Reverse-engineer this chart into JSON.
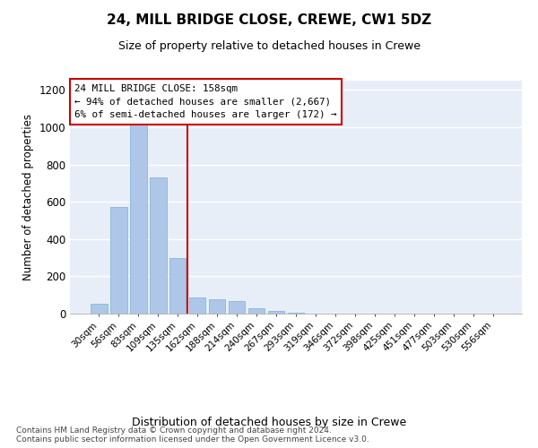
{
  "title1": "24, MILL BRIDGE CLOSE, CREWE, CW1 5DZ",
  "title2": "Size of property relative to detached houses in Crewe",
  "xlabel": "Distribution of detached houses by size in Crewe",
  "ylabel": "Number of detached properties",
  "categories": [
    "30sqm",
    "56sqm",
    "83sqm",
    "109sqm",
    "135sqm",
    "162sqm",
    "188sqm",
    "214sqm",
    "240sqm",
    "267sqm",
    "293sqm",
    "319sqm",
    "346sqm",
    "372sqm",
    "398sqm",
    "425sqm",
    "451sqm",
    "477sqm",
    "503sqm",
    "530sqm",
    "556sqm"
  ],
  "values": [
    55,
    570,
    1040,
    730,
    300,
    85,
    75,
    65,
    30,
    15,
    5,
    0,
    0,
    0,
    0,
    0,
    0,
    0,
    0,
    0,
    0
  ],
  "bar_color": "#aec7e8",
  "bar_edge_color": "#7aafd4",
  "background_color": "#e8eef8",
  "vline_color": "#cc0000",
  "vline_pos": 4.5,
  "annotation_text": "24 MILL BRIDGE CLOSE: 158sqm\n← 94% of detached houses are smaller (2,667)\n6% of semi-detached houses are larger (172) →",
  "annotation_box_color": "#ffffff",
  "annotation_box_edge": "#cc0000",
  "footer": "Contains HM Land Registry data © Crown copyright and database right 2024.\nContains public sector information licensed under the Open Government Licence v3.0.",
  "ylim": [
    0,
    1250
  ],
  "yticks": [
    0,
    200,
    400,
    600,
    800,
    1000,
    1200
  ]
}
